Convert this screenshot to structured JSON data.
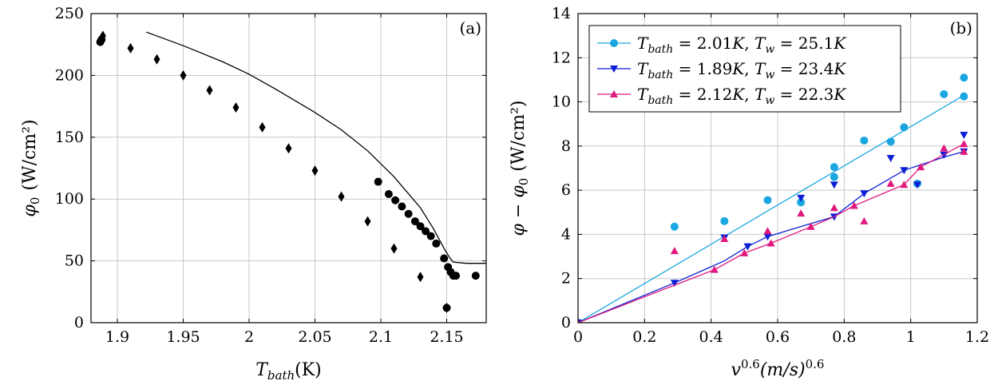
{
  "chart_data": [
    {
      "type": "scatter",
      "panel_label": "(a)",
      "xlabel": {
        "symbol": "T",
        "subscript": "bath",
        "unit": "(K)"
      },
      "ylabel": {
        "symbol": "φ",
        "subscript": "0",
        "unit": "(W/cm²)"
      },
      "xlim": [
        1.88,
        2.18
      ],
      "ylim": [
        0,
        250
      ],
      "xticks": [
        1.9,
        1.95,
        2.0,
        2.05,
        2.1,
        2.15
      ],
      "xtick_labels": [
        "1.9",
        "1.95",
        "2",
        "2.05",
        "2.1",
        "2.15"
      ],
      "yticks": [
        0,
        50,
        100,
        150,
        200,
        250
      ],
      "ytick_labels": [
        "0",
        "50",
        "100",
        "150",
        "200",
        "250"
      ],
      "grid": true,
      "series": [
        {
          "marker": "diamond",
          "color": "#000000",
          "points": [
            [
              1.889,
              232
            ],
            [
              1.91,
              222
            ],
            [
              1.93,
              213
            ],
            [
              1.95,
              200
            ],
            [
              1.97,
              188
            ],
            [
              1.99,
              174
            ],
            [
              2.01,
              158
            ],
            [
              2.03,
              141
            ],
            [
              2.05,
              123
            ],
            [
              2.07,
              102
            ],
            [
              2.09,
              82
            ],
            [
              2.11,
              60
            ],
            [
              2.13,
              37
            ],
            [
              2.15,
              12
            ]
          ]
        },
        {
          "marker": "circle",
          "color": "#000000",
          "points": [
            [
              1.887,
              227
            ],
            [
              1.888,
              229
            ],
            [
              2.098,
              114
            ],
            [
              2.106,
              104
            ],
            [
              2.111,
              99
            ],
            [
              2.116,
              94
            ],
            [
              2.121,
              88
            ],
            [
              2.126,
              82
            ],
            [
              2.13,
              78
            ],
            [
              2.134,
              74
            ],
            [
              2.138,
              70
            ],
            [
              2.142,
              64
            ],
            [
              2.148,
              52
            ],
            [
              2.151,
              45
            ],
            [
              2.153,
              41
            ],
            [
              2.155,
              38
            ],
            [
              2.157,
              38
            ],
            [
              2.15,
              12
            ],
            [
              2.172,
              38
            ]
          ]
        },
        {
          "marker": "none",
          "style": "line",
          "color": "#000000",
          "points": [
            [
              1.922,
              235
            ],
            [
              1.95,
              224
            ],
            [
              1.98,
              211
            ],
            [
              2.0,
              201
            ],
            [
              2.02,
              189
            ],
            [
              2.05,
              170
            ],
            [
              2.07,
              156
            ],
            [
              2.09,
              139
            ],
            [
              2.11,
              118
            ],
            [
              2.13,
              93
            ],
            [
              2.14,
              76
            ],
            [
              2.148,
              60
            ],
            [
              2.152,
              53
            ],
            [
              2.155,
              49
            ],
            [
              2.165,
              48
            ],
            [
              2.175,
              48
            ],
            [
              2.18,
              48
            ]
          ]
        }
      ]
    },
    {
      "type": "line",
      "panel_label": "(b)",
      "xlabel": {
        "base": "v",
        "sup1": "0.6",
        "mid": "(m/s)",
        "sup2": "0.6"
      },
      "ylabel": {
        "pre": "φ − φ",
        "subscript": "0",
        "unit": "(W/cm²)"
      },
      "xlim": [
        0,
        1.2
      ],
      "ylim": [
        0,
        14
      ],
      "xticks": [
        0,
        0.2,
        0.4,
        0.6,
        0.8,
        1.0,
        1.2
      ],
      "xtick_labels": [
        "0",
        "0.2",
        "0.4",
        "0.6",
        "0.8",
        "1",
        "1.2"
      ],
      "yticks": [
        0,
        2,
        4,
        6,
        8,
        10,
        12,
        14
      ],
      "ytick_labels": [
        "0",
        "2",
        "4",
        "6",
        "8",
        "10",
        "12",
        "14"
      ],
      "grid": true,
      "legend_position": "top-left",
      "series": [
        {
          "name": "T_bath = 2.01K, T_w = 25.1K",
          "color": "#1aa6e0",
          "marker": "circle",
          "line": [
            [
              0,
              0
            ],
            [
              1.16,
              10.3
            ]
          ],
          "points": [
            [
              0,
              0
            ],
            [
              0.29,
              4.35
            ],
            [
              0.44,
              4.6
            ],
            [
              0.57,
              5.55
            ],
            [
              0.67,
              5.45
            ],
            [
              0.77,
              7.05
            ],
            [
              0.77,
              6.6
            ],
            [
              0.86,
              8.25
            ],
            [
              0.94,
              8.2
            ],
            [
              0.98,
              8.85
            ],
            [
              1.02,
              6.3
            ],
            [
              1.1,
              10.35
            ],
            [
              1.16,
              11.1
            ],
            [
              1.16,
              10.25
            ]
          ]
        },
        {
          "name": "T_bath = 1.89K, T_w = 23.4K",
          "color": "#0b1fd6",
          "marker": "triangle-down",
          "line": [
            [
              0,
              0
            ],
            [
              0.29,
              1.8
            ],
            [
              0.44,
              2.8
            ],
            [
              0.51,
              3.45
            ],
            [
              0.57,
              3.9
            ],
            [
              0.68,
              4.4
            ],
            [
              0.77,
              4.8
            ],
            [
              0.86,
              5.85
            ],
            [
              0.98,
              6.9
            ],
            [
              1.02,
              7.1
            ],
            [
              1.1,
              7.5
            ],
            [
              1.16,
              7.75
            ]
          ],
          "points": [
            [
              0,
              0
            ],
            [
              0.29,
              1.8
            ],
            [
              0.44,
              3.85
            ],
            [
              0.51,
              3.45
            ],
            [
              0.57,
              3.9
            ],
            [
              0.67,
              5.65
            ],
            [
              0.77,
              6.25
            ],
            [
              0.77,
              4.8
            ],
            [
              0.86,
              5.85
            ],
            [
              0.94,
              7.45
            ],
            [
              0.98,
              6.9
            ],
            [
              1.02,
              6.25
            ],
            [
              1.1,
              7.6
            ],
            [
              1.16,
              8.5
            ],
            [
              1.16,
              7.75
            ]
          ]
        },
        {
          "name": "T_bath = 2.12K, T_w = 22.3K",
          "color": "#e0177e",
          "marker": "triangle-up",
          "line": [
            [
              0,
              0
            ],
            [
              0.29,
              1.7
            ],
            [
              0.41,
              2.4
            ],
            [
              0.5,
              3.15
            ],
            [
              0.58,
              3.6
            ],
            [
              0.7,
              4.35
            ],
            [
              0.77,
              4.8
            ],
            [
              0.83,
              5.3
            ],
            [
              0.98,
              6.25
            ],
            [
              1.03,
              7.05
            ],
            [
              1.16,
              8.1
            ]
          ],
          "points": [
            [
              0,
              0
            ],
            [
              0.29,
              3.25
            ],
            [
              0.41,
              2.4
            ],
            [
              0.44,
              3.8
            ],
            [
              0.5,
              3.15
            ],
            [
              0.57,
              4.15
            ],
            [
              0.58,
              3.6
            ],
            [
              0.67,
              4.95
            ],
            [
              0.7,
              4.35
            ],
            [
              0.77,
              5.2
            ],
            [
              0.83,
              5.3
            ],
            [
              0.86,
              4.6
            ],
            [
              0.94,
              6.3
            ],
            [
              0.98,
              6.25
            ],
            [
              1.03,
              7.05
            ],
            [
              1.1,
              7.9
            ],
            [
              1.16,
              8.1
            ],
            [
              1.16,
              7.75
            ]
          ]
        }
      ]
    }
  ]
}
